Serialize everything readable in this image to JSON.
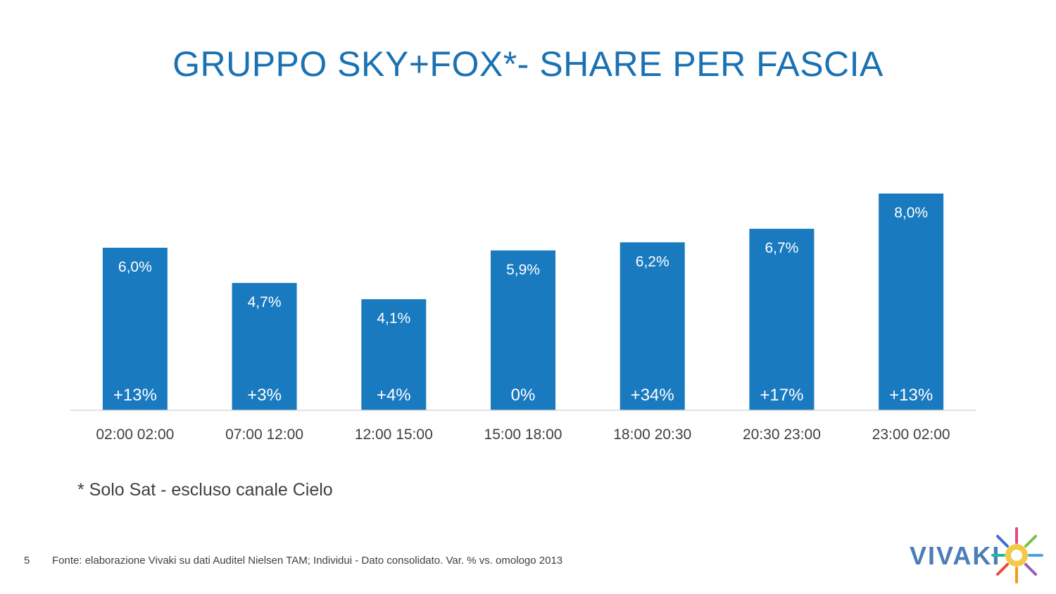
{
  "slide": {
    "title": "GRUPPO SKY+FOX*- SHARE PER FASCIA",
    "footnote": "* Solo Sat - escluso canale Cielo",
    "page_number": "5",
    "source": "Fonte: elaborazione Vivaki su dati Auditel Nielsen TAM; Individui - Dato consolidato. Var. % vs. omologo 2013",
    "logo_text": "VIVAKI"
  },
  "colors": {
    "bar": "#1a7abf",
    "title": "#1a72b3",
    "axis": "#d9d9d9",
    "text": "#404040"
  },
  "chart_data": {
    "type": "bar",
    "categories": [
      "02:00 02:00",
      "07:00 12:00",
      "12:00 15:00",
      "15:00 18:00",
      "18:00 20:30",
      "20:30 23:00",
      "23:00 02:00"
    ],
    "values": [
      6.0,
      4.7,
      4.1,
      5.9,
      6.2,
      6.7,
      8.0
    ],
    "value_labels": [
      "6,0%",
      "4,7%",
      "4,1%",
      "5,9%",
      "6,2%",
      "6,7%",
      "8,0%"
    ],
    "variation_labels": [
      "+13%",
      "+3%",
      "+4%",
      "0%",
      "+34%",
      "+17%",
      "+13%"
    ],
    "ylim": [
      0,
      8.0
    ],
    "grid": false,
    "legend": "none"
  }
}
